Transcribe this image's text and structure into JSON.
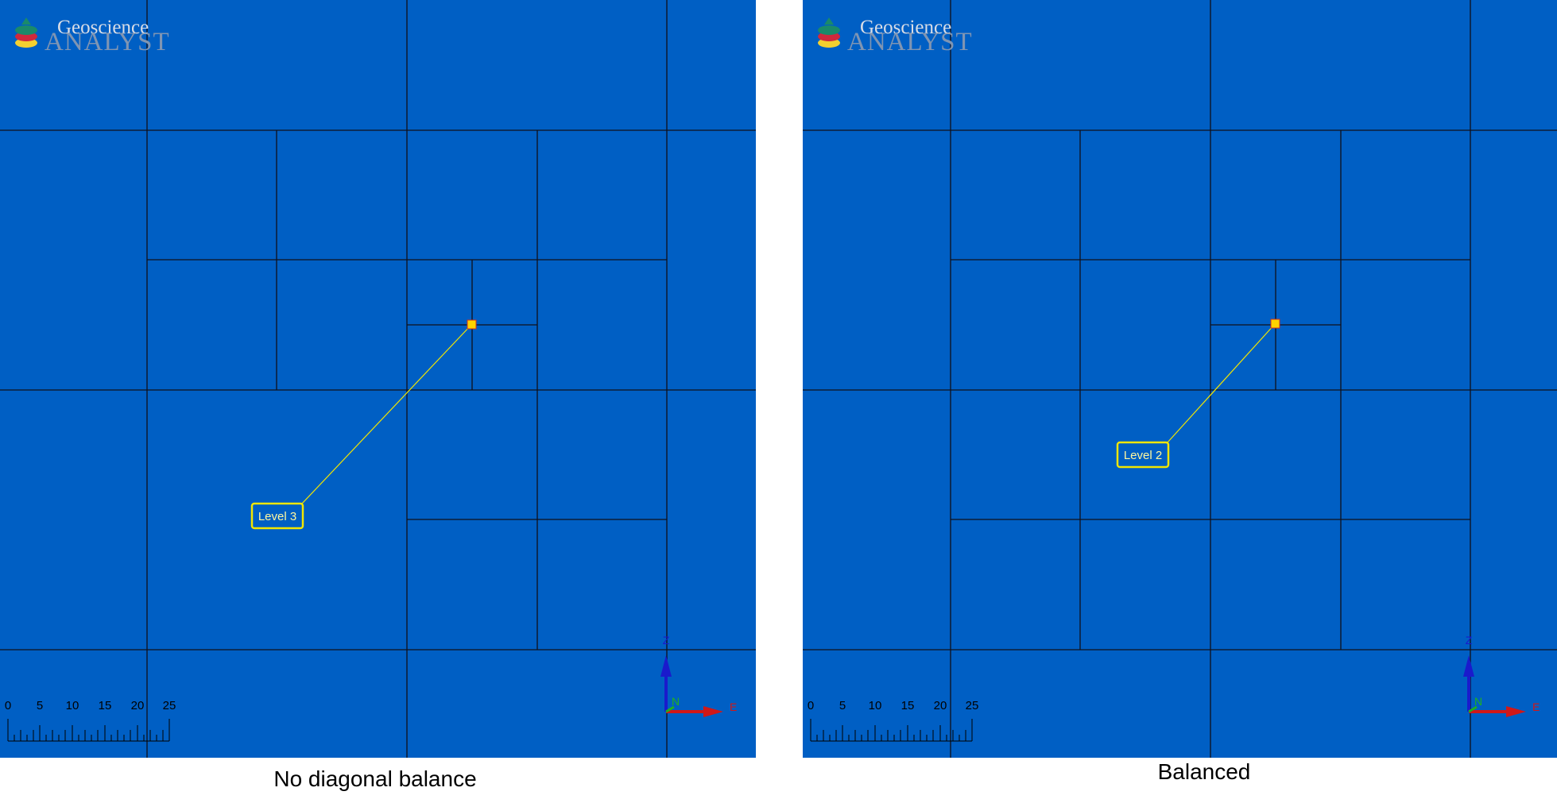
{
  "panels": [
    {
      "id": "left",
      "caption": "No diagonal balance",
      "logo": {
        "line1": "Geoscience",
        "line2": "ANALYST"
      },
      "callout": {
        "label": "Level 3"
      },
      "scale": {
        "ticks": [
          "0",
          "5",
          "10",
          "15",
          "20",
          "25"
        ]
      },
      "axes": {
        "z": "Z",
        "north": "N",
        "east": "E"
      }
    },
    {
      "id": "right",
      "caption": "Balanced",
      "logo": {
        "line1": "Geoscience",
        "line2": "ANALYST"
      },
      "callout": {
        "label": "Level 2"
      },
      "scale": {
        "ticks": [
          "0",
          "5",
          "10",
          "15",
          "20",
          "25"
        ]
      },
      "axes": {
        "z": "Z",
        "north": "N",
        "east": "E"
      }
    }
  ],
  "colors": {
    "background": "#005fc4",
    "grid_line": "#10101a",
    "callout": "#f2e600",
    "marker": "#ffd400",
    "axis_z": "#1a1acc",
    "axis_e": "#d01818",
    "axis_n": "#20b020"
  }
}
